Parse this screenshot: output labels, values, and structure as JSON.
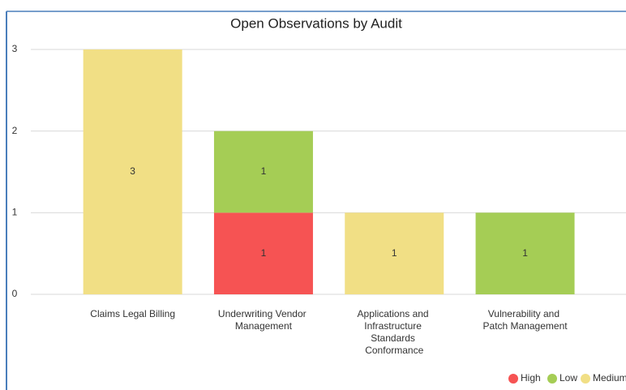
{
  "chart_data": {
    "type": "stacked_bar",
    "title": "Open Observations by Audit",
    "categories": [
      "Claims Legal Billing",
      "Underwriting Vendor Management",
      "Applications and Infrastructure Standards Conformance",
      "Vulnerability and Patch Management"
    ],
    "series": [
      {
        "name": "High",
        "color": "#f65353",
        "values": [
          null,
          1,
          null,
          null
        ]
      },
      {
        "name": "Low",
        "color": "#a5cd55",
        "values": [
          null,
          1,
          null,
          1
        ]
      },
      {
        "name": "Medium",
        "color": "#f1df85",
        "values": [
          3,
          null,
          1,
          null
        ]
      }
    ],
    "ylim": [
      0,
      3
    ],
    "yticks": [
      0,
      1,
      2,
      3
    ],
    "grid": true,
    "legend": "bottom-right"
  }
}
